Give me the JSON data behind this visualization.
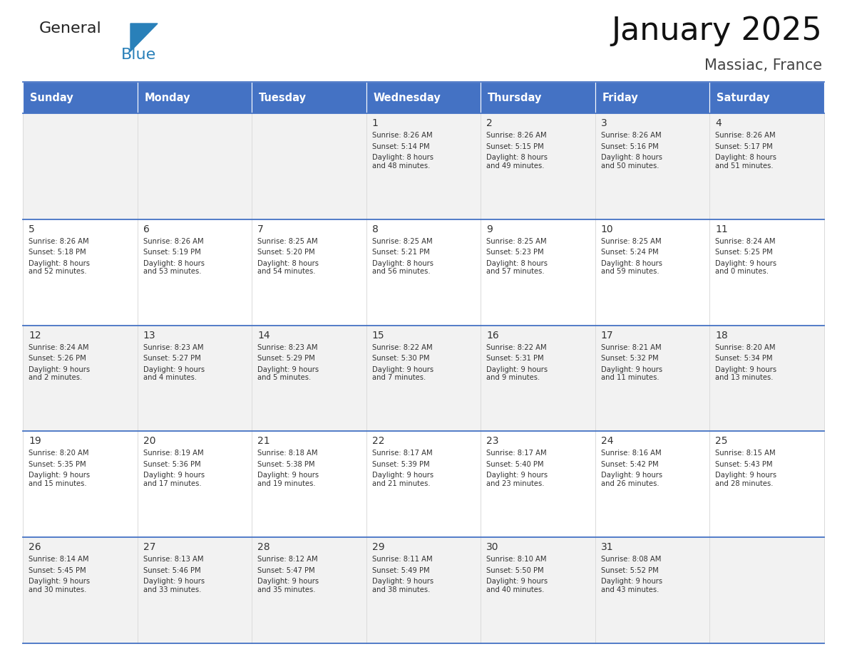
{
  "title": "January 2025",
  "subtitle": "Massiac, France",
  "header_bg": "#4472C4",
  "header_text_color": "#FFFFFF",
  "cell_bg_light": "#F2F2F2",
  "cell_bg_white": "#FFFFFF",
  "cell_text_color": "#333333",
  "day_num_color": "#333333",
  "border_color": "#4472C4",
  "line_color": "#9DC3E6",
  "days_of_week": [
    "Sunday",
    "Monday",
    "Tuesday",
    "Wednesday",
    "Thursday",
    "Friday",
    "Saturday"
  ],
  "calendar": [
    [
      {
        "day": "",
        "sunrise": "",
        "sunset": "",
        "daylight": ""
      },
      {
        "day": "",
        "sunrise": "",
        "sunset": "",
        "daylight": ""
      },
      {
        "day": "",
        "sunrise": "",
        "sunset": "",
        "daylight": ""
      },
      {
        "day": "1",
        "sunrise": "8:26 AM",
        "sunset": "5:14 PM",
        "daylight": "8 hours\nand 48 minutes."
      },
      {
        "day": "2",
        "sunrise": "8:26 AM",
        "sunset": "5:15 PM",
        "daylight": "8 hours\nand 49 minutes."
      },
      {
        "day": "3",
        "sunrise": "8:26 AM",
        "sunset": "5:16 PM",
        "daylight": "8 hours\nand 50 minutes."
      },
      {
        "day": "4",
        "sunrise": "8:26 AM",
        "sunset": "5:17 PM",
        "daylight": "8 hours\nand 51 minutes."
      }
    ],
    [
      {
        "day": "5",
        "sunrise": "8:26 AM",
        "sunset": "5:18 PM",
        "daylight": "8 hours\nand 52 minutes."
      },
      {
        "day": "6",
        "sunrise": "8:26 AM",
        "sunset": "5:19 PM",
        "daylight": "8 hours\nand 53 minutes."
      },
      {
        "day": "7",
        "sunrise": "8:25 AM",
        "sunset": "5:20 PM",
        "daylight": "8 hours\nand 54 minutes."
      },
      {
        "day": "8",
        "sunrise": "8:25 AM",
        "sunset": "5:21 PM",
        "daylight": "8 hours\nand 56 minutes."
      },
      {
        "day": "9",
        "sunrise": "8:25 AM",
        "sunset": "5:23 PM",
        "daylight": "8 hours\nand 57 minutes."
      },
      {
        "day": "10",
        "sunrise": "8:25 AM",
        "sunset": "5:24 PM",
        "daylight": "8 hours\nand 59 minutes."
      },
      {
        "day": "11",
        "sunrise": "8:24 AM",
        "sunset": "5:25 PM",
        "daylight": "9 hours\nand 0 minutes."
      }
    ],
    [
      {
        "day": "12",
        "sunrise": "8:24 AM",
        "sunset": "5:26 PM",
        "daylight": "9 hours\nand 2 minutes."
      },
      {
        "day": "13",
        "sunrise": "8:23 AM",
        "sunset": "5:27 PM",
        "daylight": "9 hours\nand 4 minutes."
      },
      {
        "day": "14",
        "sunrise": "8:23 AM",
        "sunset": "5:29 PM",
        "daylight": "9 hours\nand 5 minutes."
      },
      {
        "day": "15",
        "sunrise": "8:22 AM",
        "sunset": "5:30 PM",
        "daylight": "9 hours\nand 7 minutes."
      },
      {
        "day": "16",
        "sunrise": "8:22 AM",
        "sunset": "5:31 PM",
        "daylight": "9 hours\nand 9 minutes."
      },
      {
        "day": "17",
        "sunrise": "8:21 AM",
        "sunset": "5:32 PM",
        "daylight": "9 hours\nand 11 minutes."
      },
      {
        "day": "18",
        "sunrise": "8:20 AM",
        "sunset": "5:34 PM",
        "daylight": "9 hours\nand 13 minutes."
      }
    ],
    [
      {
        "day": "19",
        "sunrise": "8:20 AM",
        "sunset": "5:35 PM",
        "daylight": "9 hours\nand 15 minutes."
      },
      {
        "day": "20",
        "sunrise": "8:19 AM",
        "sunset": "5:36 PM",
        "daylight": "9 hours\nand 17 minutes."
      },
      {
        "day": "21",
        "sunrise": "8:18 AM",
        "sunset": "5:38 PM",
        "daylight": "9 hours\nand 19 minutes."
      },
      {
        "day": "22",
        "sunrise": "8:17 AM",
        "sunset": "5:39 PM",
        "daylight": "9 hours\nand 21 minutes."
      },
      {
        "day": "23",
        "sunrise": "8:17 AM",
        "sunset": "5:40 PM",
        "daylight": "9 hours\nand 23 minutes."
      },
      {
        "day": "24",
        "sunrise": "8:16 AM",
        "sunset": "5:42 PM",
        "daylight": "9 hours\nand 26 minutes."
      },
      {
        "day": "25",
        "sunrise": "8:15 AM",
        "sunset": "5:43 PM",
        "daylight": "9 hours\nand 28 minutes."
      }
    ],
    [
      {
        "day": "26",
        "sunrise": "8:14 AM",
        "sunset": "5:45 PM",
        "daylight": "9 hours\nand 30 minutes."
      },
      {
        "day": "27",
        "sunrise": "8:13 AM",
        "sunset": "5:46 PM",
        "daylight": "9 hours\nand 33 minutes."
      },
      {
        "day": "28",
        "sunrise": "8:12 AM",
        "sunset": "5:47 PM",
        "daylight": "9 hours\nand 35 minutes."
      },
      {
        "day": "29",
        "sunrise": "8:11 AM",
        "sunset": "5:49 PM",
        "daylight": "9 hours\nand 38 minutes."
      },
      {
        "day": "30",
        "sunrise": "8:10 AM",
        "sunset": "5:50 PM",
        "daylight": "9 hours\nand 40 minutes."
      },
      {
        "day": "31",
        "sunrise": "8:08 AM",
        "sunset": "5:52 PM",
        "daylight": "9 hours\nand 43 minutes."
      },
      {
        "day": "",
        "sunrise": "",
        "sunset": "",
        "daylight": ""
      }
    ]
  ],
  "logo_text1": "General",
  "logo_text2": "Blue",
  "logo_text1_color": "#222222",
  "logo_text2_color": "#2980B9",
  "logo_triangle_color": "#2980B9",
  "fig_width": 11.88,
  "fig_height": 9.18,
  "dpi": 100
}
